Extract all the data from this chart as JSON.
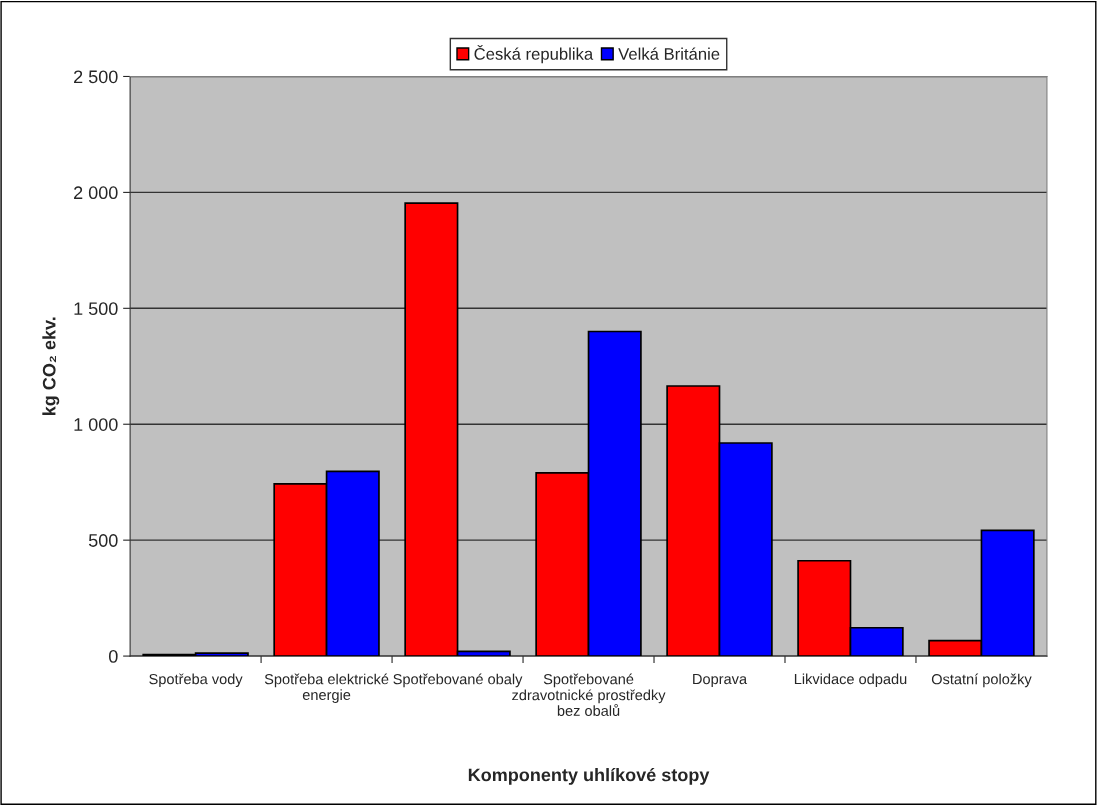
{
  "chart_data": {
    "type": "bar",
    "xlabel": "Komponenty uhlíkové stopy",
    "ylabel": "kg CO₂ ekv.",
    "categories": [
      "Spotřeba vody",
      "Spotřeba elektrické energie",
      "Spotřebované obaly",
      "Spotřebované zdravotnické prostředky bez obalů",
      "Doprava",
      "Likvidace odpadu",
      "Ostatní položky"
    ],
    "series": [
      {
        "name": "Česká republika",
        "color": "#ff0000",
        "values": [
          6,
          743,
          1954,
          790,
          1165,
          411,
          67
        ]
      },
      {
        "name": "Velká Británie",
        "color": "#0000ff",
        "values": [
          13,
          797,
          20,
          1400,
          919,
          122,
          542
        ]
      }
    ],
    "ylim": [
      0,
      2500
    ],
    "yticks": [
      {
        "value": 0,
        "label": "0"
      },
      {
        "value": 500,
        "label": "500"
      },
      {
        "value": 1000,
        "label": "1 000"
      },
      {
        "value": 1500,
        "label": "1 500"
      },
      {
        "value": 2000,
        "label": "2 000"
      },
      {
        "value": 2500,
        "label": "2 500"
      }
    ],
    "grid": "y",
    "legend": "top"
  }
}
